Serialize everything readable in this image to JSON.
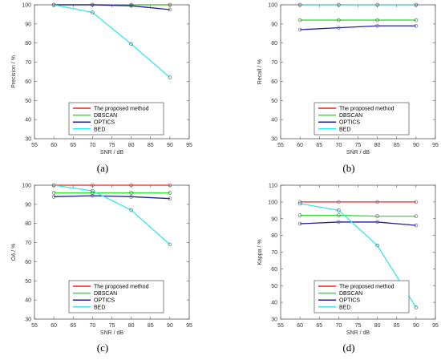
{
  "colors": {
    "proposed": "#ff1a1a",
    "dbscan": "#33dd33",
    "optics": "#1f1fa0",
    "bed": "#33e8e8",
    "axis": "#555555"
  },
  "chart_data": [
    {
      "panel": "(a)",
      "type": "line",
      "xlabel": "SNR / dB",
      "ylabel": "Precision / %",
      "xlim": [
        55,
        95
      ],
      "ylim": [
        30,
        100
      ],
      "xticks": [
        55,
        60,
        65,
        70,
        75,
        80,
        85,
        90,
        95
      ],
      "yticks": [
        30,
        40,
        50,
        60,
        70,
        80,
        90,
        100
      ],
      "x": [
        60,
        70,
        80,
        90
      ],
      "legend_position": "bottom-center",
      "series": [
        {
          "name": "The proposed method",
          "values": [
            100,
            100,
            100,
            100
          ]
        },
        {
          "name": "DBSCAN",
          "values": [
            100,
            100,
            100,
            100
          ]
        },
        {
          "name": "OPTICS",
          "values": [
            100,
            100,
            99.5,
            97.5
          ]
        },
        {
          "name": "BED",
          "values": [
            100,
            96,
            79.5,
            62
          ]
        }
      ]
    },
    {
      "panel": "(b)",
      "type": "line",
      "xlabel": "SNR / dB",
      "ylabel": "Recall / %",
      "xlim": [
        55,
        95
      ],
      "ylim": [
        30,
        100
      ],
      "xticks": [
        55,
        60,
        65,
        70,
        75,
        80,
        85,
        90,
        95
      ],
      "yticks": [
        30,
        40,
        50,
        60,
        70,
        80,
        90,
        100
      ],
      "x": [
        60,
        70,
        80,
        90
      ],
      "legend_position": "bottom-center",
      "series": [
        {
          "name": "The proposed method",
          "values": [
            100,
            100,
            100,
            100
          ]
        },
        {
          "name": "DBSCAN",
          "values": [
            92,
            92,
            92,
            92
          ]
        },
        {
          "name": "OPTICS",
          "values": [
            87,
            88,
            89,
            89
          ]
        },
        {
          "name": "BED",
          "values": [
            100,
            100,
            100,
            100
          ]
        }
      ]
    },
    {
      "panel": "(c)",
      "type": "line",
      "xlabel": "SNR / dB",
      "ylabel": "OA / %",
      "xlim": [
        55,
        95
      ],
      "ylim": [
        30,
        100
      ],
      "xticks": [
        55,
        60,
        65,
        70,
        75,
        80,
        85,
        90,
        95
      ],
      "yticks": [
        30,
        40,
        50,
        60,
        70,
        80,
        90,
        100
      ],
      "x": [
        60,
        70,
        80,
        90
      ],
      "legend_position": "bottom-center",
      "series": [
        {
          "name": "The proposed method",
          "values": [
            100,
            100,
            100,
            100
          ]
        },
        {
          "name": "DBSCAN",
          "values": [
            96,
            96,
            96,
            96
          ]
        },
        {
          "name": "OPTICS",
          "values": [
            94,
            94.5,
            94,
            93
          ]
        },
        {
          "name": "BED",
          "values": [
            100,
            97,
            87,
            69
          ]
        }
      ]
    },
    {
      "panel": "(d)",
      "type": "line",
      "xlabel": "SNR / dB",
      "ylabel": "Kappa / %",
      "xlim": [
        55,
        95
      ],
      "ylim": [
        30,
        110
      ],
      "xticks": [
        55,
        60,
        65,
        70,
        75,
        80,
        85,
        90,
        95
      ],
      "yticks": [
        30,
        40,
        50,
        60,
        70,
        80,
        90,
        100,
        110
      ],
      "x": [
        60,
        70,
        80,
        90
      ],
      "legend_position": "bottom-center",
      "series": [
        {
          "name": "The proposed method",
          "values": [
            100,
            100,
            100,
            100
          ]
        },
        {
          "name": "DBSCAN",
          "values": [
            92,
            92,
            91.5,
            91.5
          ]
        },
        {
          "name": "OPTICS",
          "values": [
            87,
            88,
            88,
            86
          ]
        },
        {
          "name": "BED",
          "values": [
            99,
            95,
            74,
            37
          ]
        }
      ]
    }
  ]
}
